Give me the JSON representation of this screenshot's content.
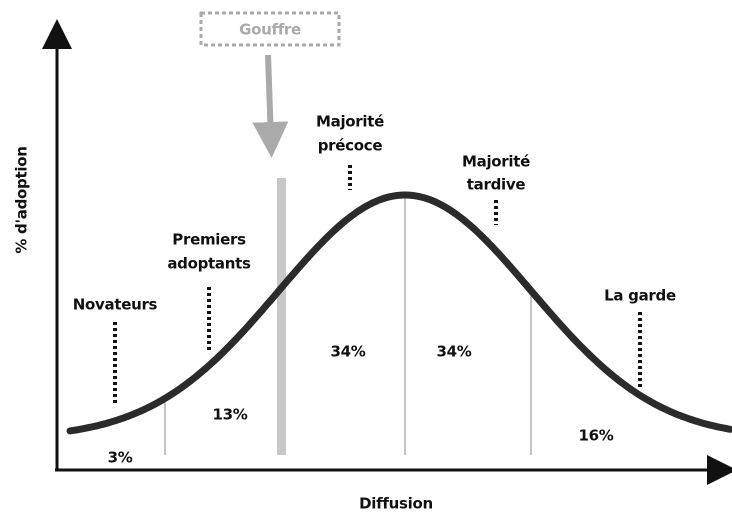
{
  "gap_label": "Gouffre",
  "y_axis_label": "% d'adoption",
  "x_axis_label": "Diffusion",
  "segments": [
    {
      "lines": [
        "Novateurs"
      ],
      "share": "3%"
    },
    {
      "lines": [
        "Premiers",
        "adoptants"
      ],
      "share": "13%"
    },
    {
      "lines": [
        "Majorité",
        "précoce"
      ],
      "share": "34%"
    },
    {
      "lines": [
        "Majorité",
        "tardive"
      ],
      "share": "34%"
    },
    {
      "lines": [
        "La garde"
      ],
      "share": "16%"
    }
  ]
}
